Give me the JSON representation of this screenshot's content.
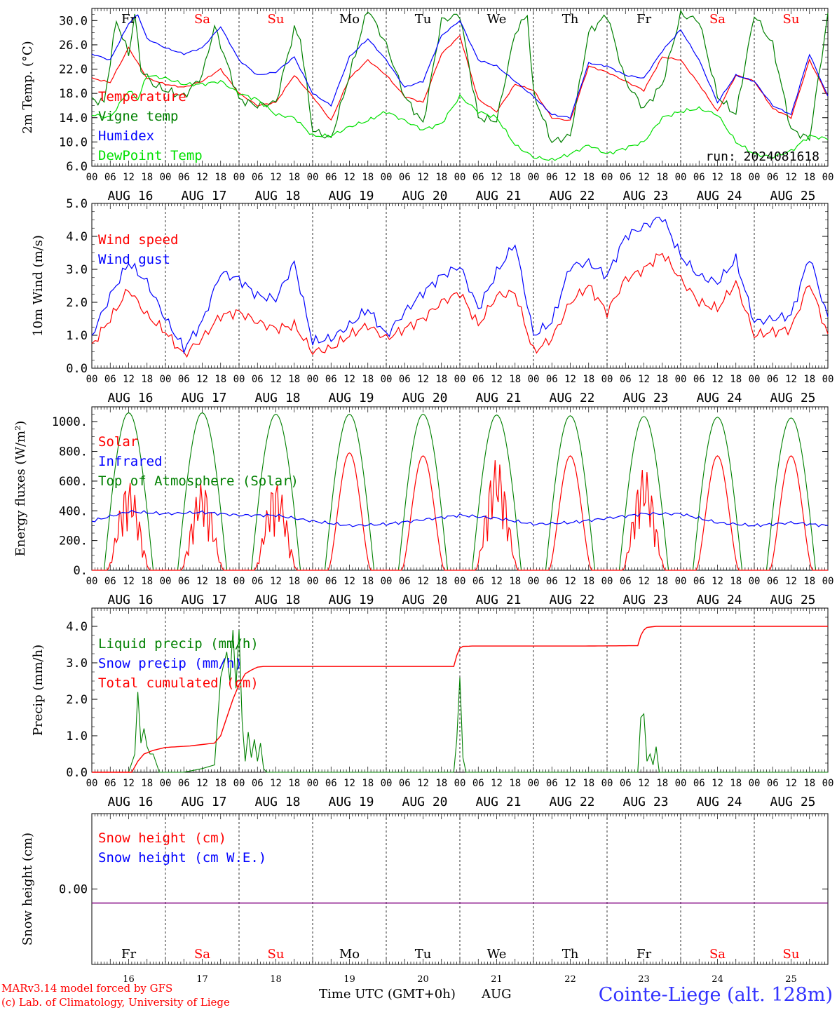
{
  "chart_data": {
    "type": "line",
    "run": "run: 2024081618",
    "hour_ticks": [
      "00",
      "06",
      "12",
      "18"
    ],
    "final_tick": "00",
    "day_labels": [
      "AUG 16",
      "AUG 17",
      "AUG 18",
      "AUG 19",
      "AUG 20",
      "AUG 21",
      "AUG 22",
      "AUG 23",
      "AUG 24",
      "AUG 25"
    ],
    "weekdays": [
      "Fr",
      "Sa",
      "Su",
      "Mo",
      "Tu",
      "We",
      "Th",
      "Fr",
      "Sa",
      "Su"
    ],
    "weekday_colors": [
      "#000000",
      "#ff0000",
      "#ff0000",
      "#000000",
      "#000000",
      "#000000",
      "#000000",
      "#000000",
      "#ff0000",
      "#ff0000"
    ],
    "day_numbers": [
      "16",
      "17",
      "18",
      "19",
      "20",
      "21",
      "22",
      "23",
      "24",
      "25"
    ],
    "x_label": "Time UTC (GMT+0h)",
    "month": "AUG",
    "credit_line1": "MARv3.14 model forced by GFS",
    "credit_line2": "(c) Lab. of Climatology, University of Liege",
    "station": "Cointe-Liege (alt. 128m)",
    "x_hours_range": [
      0,
      240
    ],
    "panels": [
      {
        "ylabel": "2m Temp. (°C)",
        "ylim": [
          6,
          32
        ],
        "yticks": [
          6,
          10,
          14,
          18,
          22,
          26,
          30
        ],
        "ytick_labels": [
          "6.0",
          "10.0",
          "14.0",
          "18.0",
          "22.0",
          "26.0",
          "30.0"
        ],
        "series": [
          {
            "name": "Temperature",
            "color": "#ff0000",
            "x": [
              0,
              6,
              12,
              15,
              18,
              24,
              30,
              36,
              42,
              48,
              54,
              60,
              66,
              72,
              78,
              84,
              90,
              96,
              102,
              108,
              114,
              120,
              126,
              132,
              138,
              144,
              150,
              156,
              162,
              168,
              174,
              180,
              186,
              192,
              198,
              204,
              210,
              216,
              222,
              228,
              234,
              240
            ],
            "y": [
              20.5,
              19.8,
              25.5,
              23,
              20.5,
              19.5,
              19,
              20,
              22,
              18,
              16,
              16.5,
              21,
              17.5,
              13.5,
              20.5,
              23.5,
              21,
              17.5,
              16.5,
              24.5,
              27.5,
              17,
              15,
              19.5,
              18.5,
              14,
              13.5,
              22.5,
              21.5,
              20,
              18.5,
              24,
              23.5,
              19.5,
              15,
              21,
              20,
              15.5,
              14,
              23.5,
              17.5
            ]
          },
          {
            "name": "Vigne temp",
            "color": "#008000",
            "x": [
              0,
              4,
              8,
              12,
              14,
              16,
              20,
              24,
              30,
              36,
              40,
              44,
              48,
              54,
              60,
              66,
              68,
              72,
              78,
              84,
              90,
              96,
              102,
              108,
              114,
              120,
              126,
              132,
              138,
              142,
              144,
              150,
              156,
              162,
              168,
              174,
              180,
              186,
              192,
              198,
              204,
              210,
              216,
              222,
              228,
              234,
              240
            ],
            "y": [
              17,
              16.5,
              30,
              24.5,
              31,
              22,
              19.5,
              18.5,
              17.5,
              21,
              29,
              23,
              17,
              16,
              16.5,
              28.5,
              27,
              12,
              10.5,
              21,
              32,
              26,
              17.5,
              13,
              30,
              31,
              14,
              13.5,
              28,
              31,
              18,
              10,
              11,
              28,
              31,
              20,
              15.5,
              19.5,
              31,
              30,
              17.5,
              14.5,
              31,
              26,
              12,
              10.5,
              31
            ],
            "tail": [
              16,
              13.5
            ]
          },
          {
            "name": "Humidex",
            "color": "#0000ff",
            "x": [
              0,
              6,
              12,
              15,
              18,
              24,
              30,
              36,
              42,
              48,
              54,
              60,
              66,
              72,
              78,
              84,
              90,
              96,
              102,
              108,
              114,
              120,
              126,
              132,
              138,
              144,
              150,
              156,
              162,
              168,
              174,
              180,
              186,
              192,
              198,
              204,
              210,
              216,
              222,
              228,
              234,
              240
            ],
            "y": [
              24.5,
              23.5,
              29.5,
              31,
              27,
              25.5,
              24.5,
              25.5,
              29,
              23.5,
              21,
              21.5,
              24,
              18,
              16,
              24,
              27,
              23.5,
              19,
              20,
              27.5,
              30,
              23.5,
              22.5,
              20,
              17.5,
              14.5,
              14,
              23,
              22.5,
              21,
              20.5,
              25,
              28.5,
              23.5,
              16.5,
              21,
              20,
              16,
              14.5,
              24.5,
              17.5
            ]
          },
          {
            "name": "DewPoint Temp",
            "color": "#00e000",
            "x": [
              0,
              6,
              12,
              15,
              18,
              24,
              30,
              36,
              42,
              48,
              54,
              60,
              66,
              72,
              78,
              84,
              90,
              96,
              102,
              108,
              114,
              120,
              126,
              132,
              138,
              144,
              150,
              156,
              162,
              168,
              174,
              180,
              186,
              192,
              198,
              204,
              210,
              216,
              222,
              228,
              234,
              240
            ],
            "y": [
              14.5,
              14,
              18.5,
              17,
              21,
              20.5,
              19.5,
              19.5,
              20,
              18,
              17,
              14.5,
              14,
              11,
              11,
              12.5,
              13.5,
              15,
              13.5,
              12,
              13,
              17.5,
              15,
              14,
              9.5,
              7.5,
              7,
              8,
              9.5,
              8,
              9,
              10,
              14,
              15,
              15.5,
              14.5,
              10,
              8,
              7.5,
              8.5,
              11,
              10.5
            ]
          }
        ]
      },
      {
        "ylabel": "10m Wind (m/s)",
        "ylim": [
          0,
          5
        ],
        "yticks": [
          0,
          1,
          2,
          3,
          4,
          5
        ],
        "ytick_labels": [
          "0.0",
          "1.0",
          "2.0",
          "3.0",
          "4.0",
          "5.0"
        ],
        "series": [
          {
            "name": "Wind speed",
            "color": "#ff0000",
            "x": [
              0,
              6,
              12,
              18,
              24,
              30,
              36,
              42,
              48,
              54,
              60,
              66,
              72,
              78,
              84,
              90,
              96,
              102,
              108,
              114,
              120,
              126,
              132,
              138,
              144,
              150,
              156,
              162,
              168,
              174,
              180,
              186,
              192,
              198,
              204,
              210,
              216,
              222,
              228,
              234,
              240
            ],
            "y": [
              0.7,
              1.5,
              2.4,
              1.6,
              1.1,
              0.4,
              0.9,
              1.6,
              1.7,
              1.4,
              1.2,
              1.3,
              0.5,
              0.6,
              1.0,
              1.3,
              0.9,
              1.2,
              1.5,
              2.0,
              2.3,
              1.3,
              2.2,
              2.3,
              0.5,
              0.9,
              2.0,
              2.5,
              1.7,
              2.7,
              3.0,
              3.5,
              2.7,
              2.0,
              1.8,
              2.6,
              1.0,
              1.1,
              1.2,
              2.6,
              1.0
            ]
          },
          {
            "name": "Wind gust",
            "color": "#0000ff",
            "x": [
              0,
              6,
              12,
              18,
              24,
              30,
              36,
              42,
              48,
              54,
              60,
              66,
              72,
              78,
              84,
              90,
              96,
              102,
              108,
              114,
              120,
              126,
              132,
              138,
              144,
              150,
              156,
              162,
              168,
              174,
              180,
              186,
              192,
              198,
              204,
              210,
              216,
              222,
              228,
              234,
              240
            ],
            "y": [
              1.0,
              2.2,
              3.2,
              2.6,
              1.5,
              0.6,
              1.4,
              2.9,
              2.7,
              2.2,
              2.1,
              3.2,
              0.8,
              0.9,
              1.3,
              1.8,
              1.0,
              1.7,
              2.3,
              2.8,
              3.1,
              1.8,
              2.9,
              3.8,
              1.0,
              1.4,
              3.1,
              3.2,
              2.8,
              4.0,
              4.3,
              4.6,
              3.4,
              2.8,
              2.6,
              3.3,
              1.4,
              1.5,
              1.6,
              3.4,
              1.5
            ]
          }
        ]
      },
      {
        "ylabel": "Energy fluxes (W/m²)",
        "ylim": [
          0,
          1100
        ],
        "yticks": [
          0,
          200,
          400,
          600,
          800,
          1000
        ],
        "ytick_labels": [
          "0.",
          "200.",
          "400.",
          "600.",
          "800.",
          "1000."
        ],
        "series": [
          {
            "name": "Solar",
            "color": "#ff0000",
            "peaks": [
              600,
              590,
              600,
              790,
              770,
              750,
              770,
              690,
              770,
              770
            ]
          },
          {
            "name": "Infrared",
            "color": "#0000ff",
            "x": [
              0,
              12,
              24,
              36,
              48,
              60,
              72,
              84,
              96,
              108,
              120,
              132,
              144,
              156,
              168,
              180,
              192,
              204,
              216,
              228,
              240
            ],
            "y": [
              330,
              395,
              380,
              390,
              370,
              370,
              330,
              300,
              310,
              340,
              370,
              350,
              310,
              320,
              350,
              380,
              380,
              320,
              300,
              320,
              300
            ]
          },
          {
            "name": "Top of Atmosphere (Solar)",
            "color": "#008000",
            "peaks": [
              1060,
              1060,
              1050,
              1050,
              1050,
              1045,
              1040,
              1035,
              1030,
              1025
            ]
          }
        ]
      },
      {
        "ylabel": "Precip (mm/h)",
        "ylim": [
          0,
          4.5
        ],
        "yticks": [
          0,
          1,
          2,
          3,
          4
        ],
        "ytick_labels": [
          "0.0",
          "1.0",
          "2.0",
          "3.0",
          "4.0"
        ],
        "series": [
          {
            "name": "Liquid precip (mm/h)",
            "color": "#008000",
            "x": [
              0,
              12,
              14,
              15,
              16,
              17,
              18,
              19,
              20,
              22,
              24,
              30,
              36,
              40,
              42,
              44,
              45,
              46,
              47,
              48,
              49,
              50,
              51,
              52,
              53,
              54,
              55,
              56,
              57,
              60,
              70,
              118,
              119,
              120,
              121,
              122,
              123,
              126,
              130,
              132,
              178,
              179,
              180,
              181,
              182,
              183,
              184,
              185,
              186,
              190,
              240
            ],
            "y": [
              0,
              0,
              0.5,
              2.2,
              0.8,
              1.2,
              0.7,
              0.5,
              0.5,
              0,
              0,
              0,
              0.1,
              0.2,
              2.6,
              3.3,
              2.5,
              3.9,
              2.3,
              3.9,
              1.4,
              0.3,
              1.1,
              0.4,
              0.9,
              0.3,
              0.8,
              0.1,
              0,
              0,
              0,
              0,
              0.9,
              2.6,
              0.4,
              0,
              0,
              0,
              0,
              0,
              0,
              1.5,
              1.6,
              0.3,
              0.5,
              0.2,
              0.7,
              0,
              0,
              0,
              0
            ]
          },
          {
            "name": "Snow precip (mm/h)",
            "color": "#0000ff"
          },
          {
            "name": "Total cumulated (cm)",
            "color": "#ff0000",
            "x": [
              0,
              13,
              15,
              17,
              20,
              24,
              32,
              40,
              42,
              44,
              46,
              48,
              50,
              52,
              54,
              56,
              60,
              70,
              80,
              90,
              100,
              110,
              118,
              119,
              120,
              121,
              124,
              140,
              160,
              178,
              179,
              180,
              181,
              184,
              200,
              220,
              240
            ],
            "y": [
              0,
              0,
              0.3,
              0.5,
              0.6,
              0.68,
              0.72,
              0.8,
              1.0,
              1.5,
              2.0,
              2.4,
              2.7,
              2.8,
              2.88,
              2.9,
              2.9,
              2.9,
              2.9,
              2.9,
              2.9,
              2.9,
              2.9,
              3.2,
              3.4,
              3.45,
              3.46,
              3.46,
              3.46,
              3.47,
              3.75,
              3.9,
              3.97,
              4.0,
              4.0,
              4.0,
              4.0
            ]
          }
        ]
      },
      {
        "ylabel": "Snow height (cm)",
        "yticks": [
          0
        ],
        "ytick_labels": [
          "0.00"
        ],
        "series": [
          {
            "name": "Snow height (cm)",
            "color": "#ff0000",
            "x": [
              0,
              240
            ],
            "y": [
              0,
              0
            ]
          },
          {
            "name": "Snow height (cm W.E.)",
            "color": "#0000ff",
            "x": [
              0,
              240
            ],
            "y": [
              0,
              0
            ]
          }
        ]
      }
    ]
  }
}
